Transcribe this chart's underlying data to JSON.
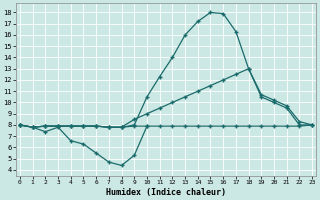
{
  "xlabel": "Humidex (Indice chaleur)",
  "background_color": "#cce8e4",
  "grid_color": "#b0d8d4",
  "line_color": "#1a6b6b",
  "x_ticks": [
    0,
    1,
    2,
    3,
    4,
    5,
    6,
    7,
    8,
    9,
    10,
    11,
    12,
    13,
    14,
    15,
    16,
    17,
    18,
    19,
    20,
    21,
    22,
    23
  ],
  "y_ticks": [
    4,
    5,
    6,
    7,
    8,
    9,
    10,
    11,
    12,
    13,
    14,
    15,
    16,
    17,
    18
  ],
  "ylim": [
    3.5,
    18.8
  ],
  "xlim": [
    -0.3,
    23.3
  ],
  "curve_spike_x": [
    0,
    1,
    2,
    3,
    4,
    5,
    6,
    7,
    8,
    9,
    10,
    11,
    12,
    13,
    14,
    15,
    16,
    17,
    18,
    19,
    20,
    21,
    22,
    23
  ],
  "curve_spike_y": [
    8.0,
    7.8,
    7.9,
    7.9,
    7.9,
    7.9,
    7.9,
    7.8,
    7.8,
    8.0,
    10.5,
    12.3,
    14.0,
    16.0,
    17.2,
    18.0,
    17.9,
    16.3,
    13.0,
    10.5,
    10.0,
    9.5,
    8.0,
    8.0
  ],
  "curve_diag_x": [
    0,
    1,
    2,
    3,
    4,
    5,
    6,
    7,
    8,
    9,
    10,
    11,
    12,
    13,
    14,
    15,
    16,
    17,
    18,
    19,
    20,
    21,
    22,
    23
  ],
  "curve_diag_y": [
    8.0,
    7.8,
    7.9,
    7.9,
    7.9,
    7.9,
    7.9,
    7.8,
    7.8,
    8.5,
    9.0,
    9.5,
    10.0,
    10.5,
    11.0,
    11.5,
    12.0,
    12.5,
    13.0,
    10.7,
    10.2,
    9.7,
    8.3,
    8.0
  ],
  "curve_flat_x": [
    0,
    1,
    2,
    3,
    4,
    5,
    6,
    7,
    8,
    9,
    10,
    11,
    12,
    13,
    14,
    15,
    16,
    17,
    18,
    19,
    20,
    21,
    22,
    23
  ],
  "curve_flat_y": [
    8.0,
    7.8,
    7.9,
    7.9,
    7.9,
    7.9,
    7.9,
    7.8,
    7.8,
    7.9,
    7.9,
    7.9,
    7.9,
    7.9,
    7.9,
    7.9,
    7.9,
    7.9,
    7.9,
    7.9,
    7.9,
    7.9,
    7.9,
    8.0
  ],
  "curve_dip_x": [
    0,
    1,
    2,
    3,
    4,
    5,
    6,
    7,
    8,
    9,
    10
  ],
  "curve_dip_y": [
    8.0,
    7.8,
    7.4,
    7.8,
    6.6,
    6.3,
    5.5,
    4.7,
    4.4,
    5.3,
    7.9
  ]
}
